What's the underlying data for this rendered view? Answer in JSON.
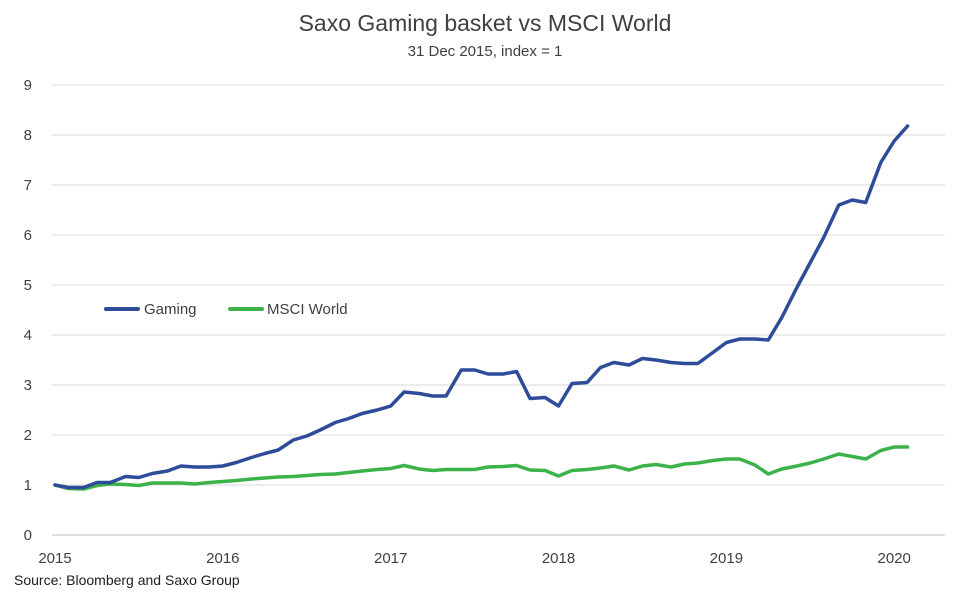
{
  "chart_data": {
    "type": "line",
    "title": "Saxo Gaming basket vs MSCI World",
    "subtitle": "31 Dec 2015, index = 1",
    "source": "Source: Bloomberg and Saxo Group",
    "xlabel": "",
    "ylabel": "",
    "xlim": [
      2015,
      2020.33
    ],
    "ylim": [
      0,
      9
    ],
    "y_ticks": [
      "0",
      "1",
      "2",
      "3",
      "4",
      "5",
      "6",
      "7",
      "8",
      "9"
    ],
    "x_ticks": [
      "2015",
      "2016",
      "2017",
      "2018",
      "2019",
      "2020"
    ],
    "grid": "horizontal",
    "legend_position": "left-middle",
    "x": [
      2015.0,
      2015.08,
      2015.17,
      2015.25,
      2015.33,
      2015.42,
      2015.5,
      2015.58,
      2015.67,
      2015.75,
      2015.83,
      2015.92,
      2016.0,
      2016.08,
      2016.17,
      2016.25,
      2016.33,
      2016.42,
      2016.5,
      2016.58,
      2016.67,
      2016.75,
      2016.83,
      2016.92,
      2017.0,
      2017.08,
      2017.17,
      2017.25,
      2017.33,
      2017.42,
      2017.5,
      2017.58,
      2017.67,
      2017.75,
      2017.83,
      2017.92,
      2018.0,
      2018.08,
      2018.17,
      2018.25,
      2018.33,
      2018.42,
      2018.5,
      2018.58,
      2018.67,
      2018.75,
      2018.83,
      2018.92,
      2019.0,
      2019.08,
      2019.17,
      2019.25,
      2019.33,
      2019.42,
      2019.5,
      2019.58,
      2019.67,
      2019.75,
      2019.83,
      2019.92,
      2020.0,
      2020.08
    ],
    "series": [
      {
        "name": "Gaming",
        "color": "#2e4c9a",
        "values": [
          1.0,
          0.95,
          0.95,
          1.05,
          1.05,
          1.17,
          1.15,
          1.23,
          1.28,
          1.38,
          1.36,
          1.36,
          1.38,
          1.45,
          1.55,
          1.63,
          1.7,
          1.9,
          1.98,
          2.1,
          2.25,
          2.33,
          2.43,
          2.5,
          2.58,
          2.86,
          2.83,
          2.78,
          2.78,
          3.3,
          3.3,
          3.22,
          3.22,
          3.27,
          2.73,
          2.75,
          2.58,
          3.03,
          3.05,
          3.35,
          3.45,
          3.4,
          3.53,
          3.5,
          3.45,
          3.43,
          3.43,
          3.65,
          3.85,
          3.92,
          3.92,
          3.9,
          4.35,
          4.95,
          5.45,
          5.95,
          6.6,
          6.7,
          6.65,
          7.45,
          7.88,
          8.18
        ]
      },
      {
        "name": "MSCI World",
        "color": "#3cb34a",
        "values": [
          1.0,
          0.93,
          0.92,
          0.99,
          1.02,
          1.01,
          0.99,
          1.04,
          1.04,
          1.04,
          1.02,
          1.05,
          1.07,
          1.09,
          1.12,
          1.14,
          1.16,
          1.17,
          1.19,
          1.21,
          1.22,
          1.25,
          1.28,
          1.31,
          1.33,
          1.39,
          1.32,
          1.29,
          1.31,
          1.31,
          1.31,
          1.36,
          1.37,
          1.39,
          1.3,
          1.29,
          1.18,
          1.29,
          1.31,
          1.34,
          1.38,
          1.3,
          1.38,
          1.41,
          1.36,
          1.42,
          1.44,
          1.49,
          1.52,
          1.52,
          1.4,
          1.22,
          1.32,
          1.38,
          1.44,
          1.52,
          1.62,
          1.57,
          1.52,
          1.69,
          1.76,
          1.76
        ]
      }
    ]
  }
}
